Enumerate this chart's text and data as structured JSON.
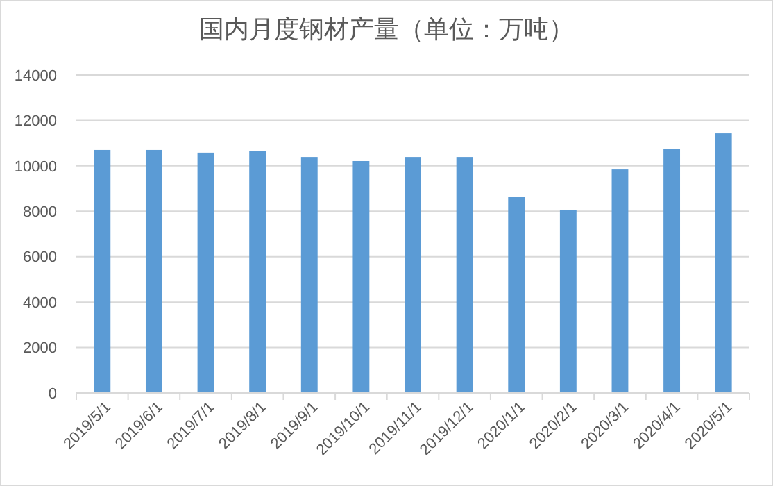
{
  "chart_data": {
    "type": "bar",
    "title": "国内月度钢材产量（单位：万吨）",
    "categories": [
      "2019/5/1",
      "2019/6/1",
      "2019/7/1",
      "2019/8/1",
      "2019/9/1",
      "2019/10/1",
      "2019/11/1",
      "2019/12/1",
      "2020/1/1",
      "2020/2/1",
      "2020/3/1",
      "2020/4/1",
      "2020/5/1"
    ],
    "values": [
      10700,
      10700,
      10580,
      10640,
      10390,
      10210,
      10390,
      10390,
      8620,
      8070,
      9840,
      10750,
      11430
    ],
    "color": "#5b9bd5",
    "ylim": [
      0,
      14000
    ],
    "yticks": [
      0,
      2000,
      4000,
      6000,
      8000,
      10000,
      12000,
      14000
    ],
    "grid": "y"
  }
}
